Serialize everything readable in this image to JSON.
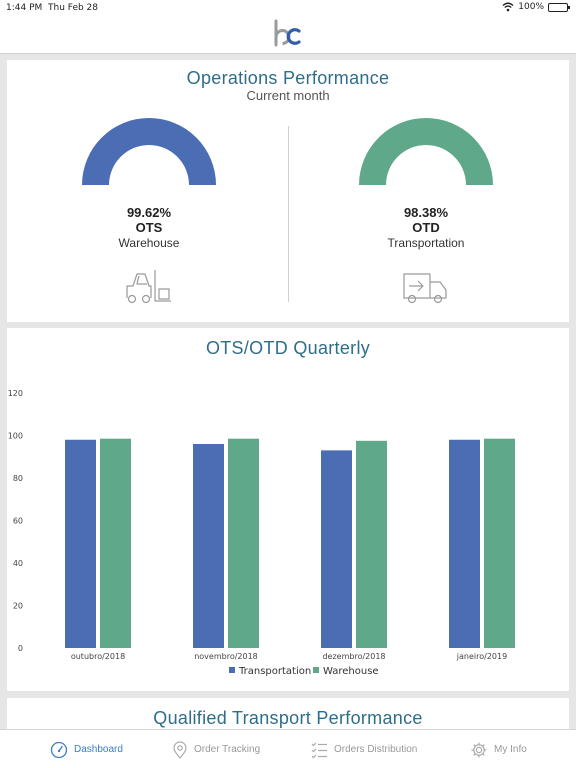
{
  "status": {
    "time": "1:44 PM",
    "date": "Thu Feb 28",
    "battery": "100%"
  },
  "ops": {
    "title": "Operations Performance",
    "subtitle": "Current month",
    "ots": {
      "value": "99.62%",
      "name": "OTS",
      "sub": "Warehouse",
      "color": "#4a6db3",
      "icon": "forklift-icon"
    },
    "otd": {
      "value": "98.38%",
      "name": "OTD",
      "sub": "Transportation",
      "color": "#5fa88a",
      "icon": "delivery-truck-icon"
    }
  },
  "quarterly": {
    "title": "OTS/OTD Quarterly"
  },
  "chart_data": {
    "type": "bar",
    "title": "OTS/OTD Quarterly",
    "categories": [
      "outubro/2018",
      "novembro/2018",
      "dezembro/2018",
      "janeiro/2019"
    ],
    "series": [
      {
        "name": "Transportation",
        "color": "#4a6db3",
        "values": [
          98,
          96,
          93,
          98
        ]
      },
      {
        "name": "Warehouse",
        "color": "#5fa88a",
        "values": [
          98.5,
          98.5,
          97.5,
          98.5
        ]
      }
    ],
    "yticks": [
      "0",
      "20",
      "40",
      "60",
      "80",
      "100",
      "120"
    ],
    "ylim": [
      0,
      120
    ],
    "legend": "bottom-center",
    "grid": false
  },
  "qualified": {
    "title": "Qualified Transport Performance"
  },
  "tabs": [
    {
      "label": "Dashboard",
      "icon": "speedometer-icon"
    },
    {
      "label": "Order Tracking",
      "icon": "location-pin-icon"
    },
    {
      "label": "Orders Distribution",
      "icon": "checklist-icon"
    },
    {
      "label": "My Info",
      "icon": "gear-icon"
    }
  ]
}
